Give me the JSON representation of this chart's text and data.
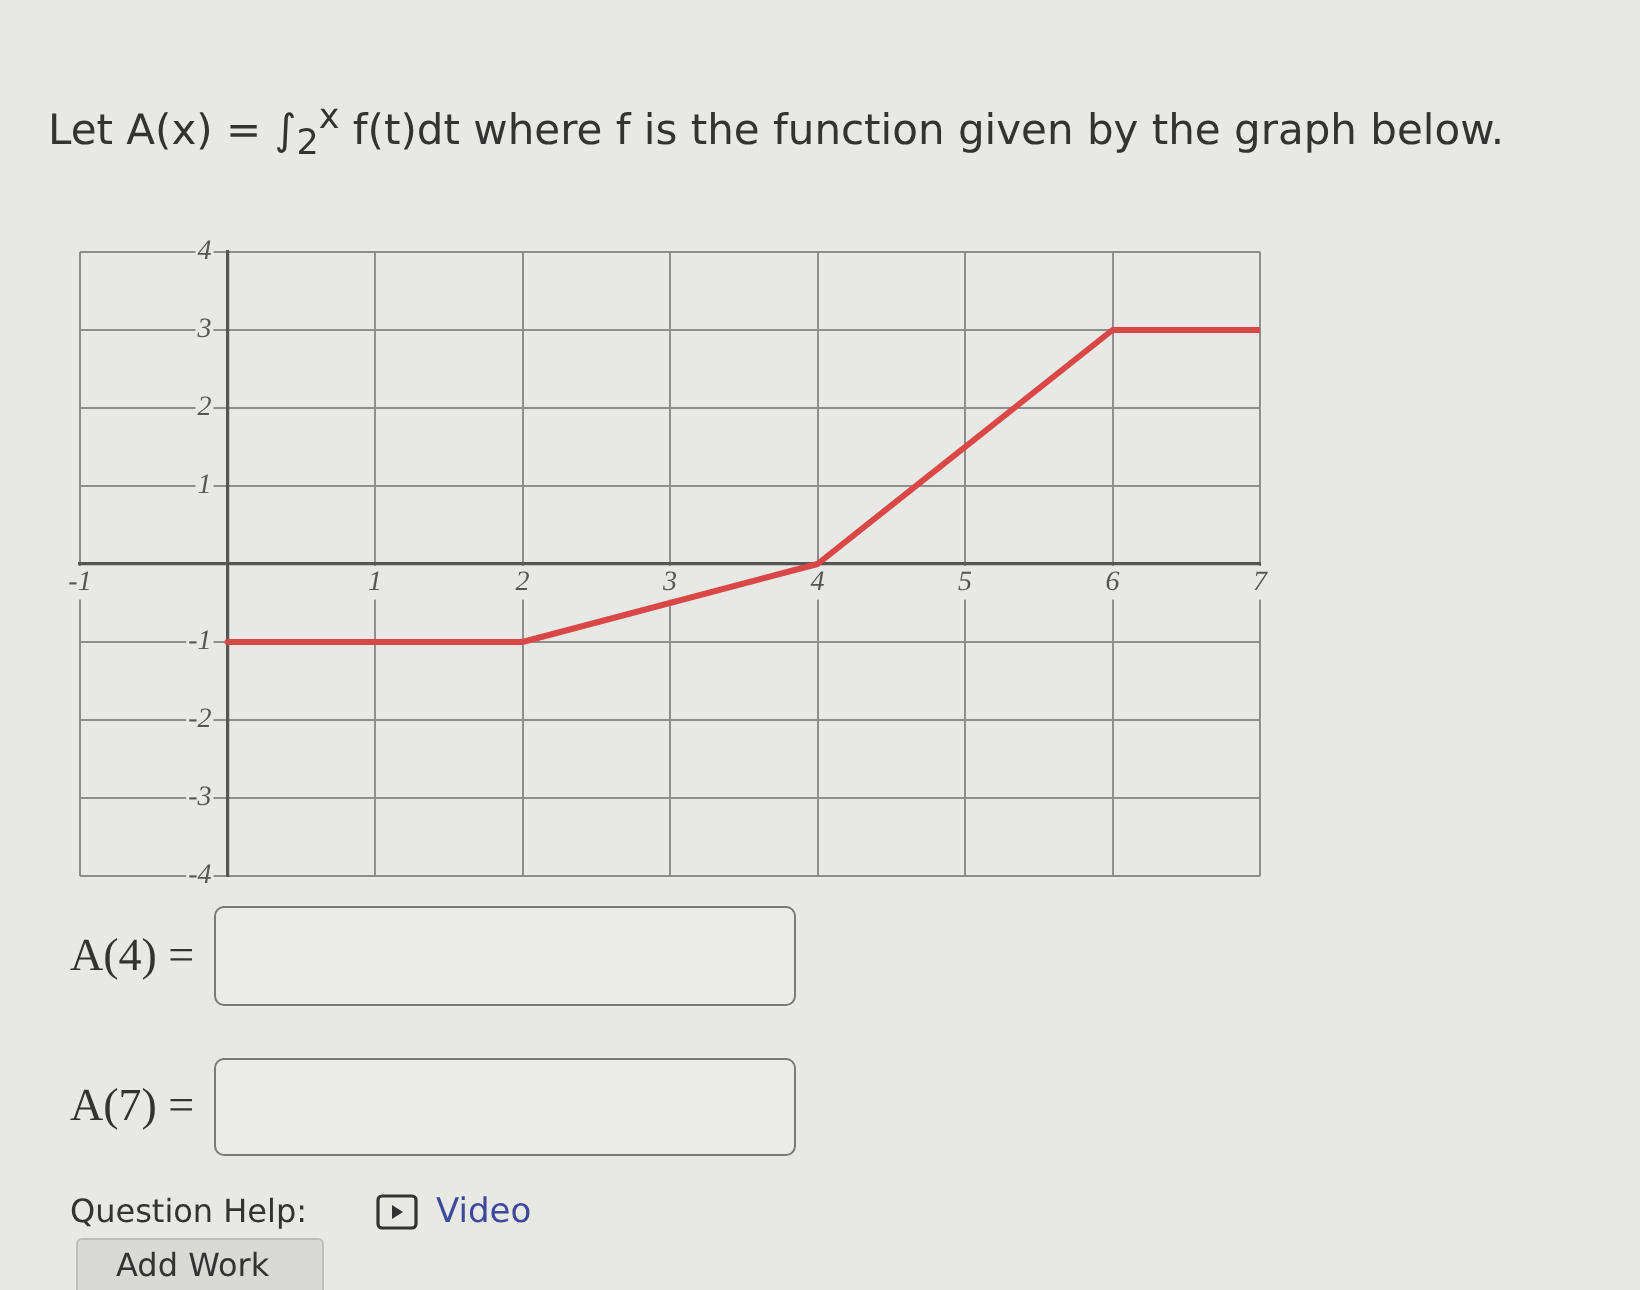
{
  "chart_data": {
    "type": "line",
    "title": "Let A(x) = ∫$_{2}$$^{x}$ f(t)dt where f is the function given by the graph below.",
    "x": [
      0,
      2,
      4,
      6,
      7
    ],
    "series": [
      {
        "color": "#d94747",
        "values": [
          -1,
          -1,
          0,
          3,
          3
        ]
      }
    ],
    "xlim": [
      -1,
      7
    ],
    "ylim": [
      -4,
      4
    ],
    "xticks": [
      -1,
      1,
      2,
      3,
      4,
      5,
      6,
      7
    ],
    "yticks": [
      -4,
      -3,
      -2,
      -1,
      1,
      2,
      3,
      4
    ],
    "grid": true,
    "marker": "none",
    "line_style": "solid",
    "annotations": [
      "A(4) =",
      "A(7) =",
      "Question Help:",
      "Video",
      "Add Work"
    ]
  }
}
